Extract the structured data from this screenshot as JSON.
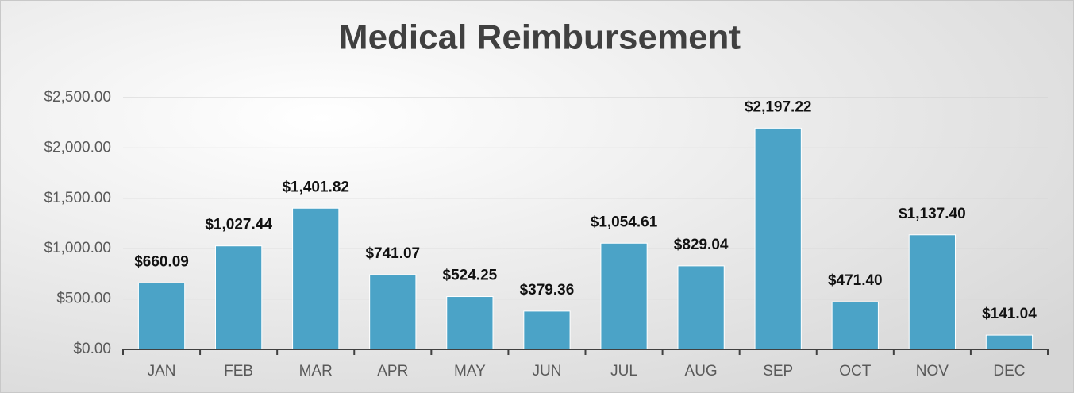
{
  "chart_data": {
    "type": "bar",
    "title": "Medical Reimbursement",
    "categories": [
      "JAN",
      "FEB",
      "MAR",
      "APR",
      "MAY",
      "JUN",
      "JUL",
      "AUG",
      "SEP",
      "OCT",
      "NOV",
      "DEC"
    ],
    "values": [
      660.09,
      1027.44,
      1401.82,
      741.07,
      524.25,
      379.36,
      1054.61,
      829.04,
      2197.22,
      471.4,
      1137.4,
      141.04
    ],
    "value_labels": [
      "$660.09",
      "$1,027.44",
      "$1,401.82",
      "$741.07",
      "$524.25",
      "$379.36",
      "$1,054.61",
      "$829.04",
      "$2,197.22",
      "$471.40",
      "$1,137.40",
      "$141.04"
    ],
    "color": "#4ba3c7",
    "ylim": [
      0,
      2500
    ],
    "yticks": [
      {
        "value": 0,
        "label": "$0.00"
      },
      {
        "value": 500,
        "label": "$500.00"
      },
      {
        "value": 1000,
        "label": "$1,000.00"
      },
      {
        "value": 1500,
        "label": "$1,500.00"
      },
      {
        "value": 2000,
        "label": "$2,000.00"
      },
      {
        "value": 2500,
        "label": "$2,500.00"
      }
    ],
    "grid": true
  }
}
